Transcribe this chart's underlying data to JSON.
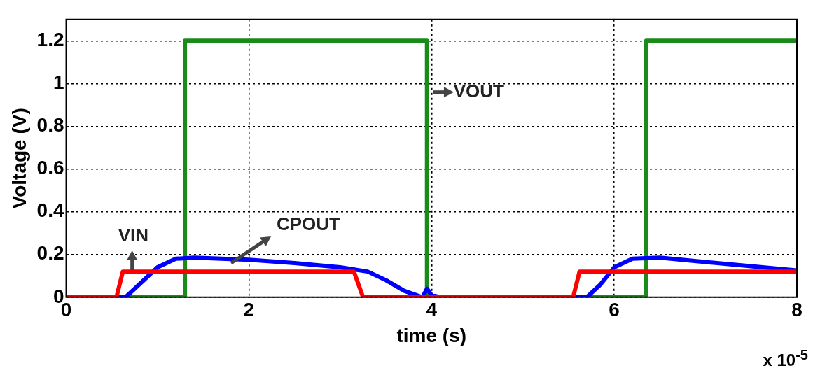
{
  "chart_data": {
    "type": "line",
    "xlabel": "time (s)",
    "ylabel": "Voltage (V)",
    "xlim": [
      0,
      8
    ],
    "xticks": [
      0,
      2,
      4,
      6,
      8
    ],
    "ylim": [
      0,
      1.3
    ],
    "yticks": [
      0,
      0.2,
      0.4,
      0.6,
      0.8,
      1,
      1.2
    ],
    "grid": true,
    "legend": false,
    "marker": "none",
    "line_style": "solid",
    "series": [
      {
        "name": "VIN",
        "color": "#ff0000",
        "x": [
          0,
          0.55,
          0.62,
          3.15,
          3.25,
          5.55,
          5.62,
          8
        ],
        "values": [
          0,
          0,
          0.12,
          0.12,
          0,
          0,
          0.12,
          0.12
        ]
      },
      {
        "name": "CPOUT",
        "color": "#0000ff",
        "x": [
          0,
          0.65,
          0.8,
          1,
          1.2,
          1.4,
          2,
          2.5,
          3,
          3.3,
          3.5,
          3.7,
          3.9,
          3.95,
          4.0,
          4.1,
          5.7,
          5.85,
          6,
          6.2,
          6.5,
          7,
          7.5,
          8
        ],
        "values": [
          0,
          0,
          0.06,
          0.14,
          0.18,
          0.185,
          0.175,
          0.16,
          0.14,
          0.12,
          0.08,
          0.03,
          0,
          0.04,
          0.01,
          0,
          0,
          0.06,
          0.14,
          0.18,
          0.185,
          0.165,
          0.145,
          0.125
        ]
      },
      {
        "name": "VOUT",
        "color": "#1a8a1a",
        "x": [
          0,
          1.3,
          1.3,
          3.95,
          3.95,
          6.35,
          6.35,
          8
        ],
        "values": [
          0,
          0,
          1.2,
          1.2,
          0,
          0,
          1.2,
          1.2
        ]
      }
    ],
    "annotations": [
      "x 10$^{-5}$"
    ]
  }
}
